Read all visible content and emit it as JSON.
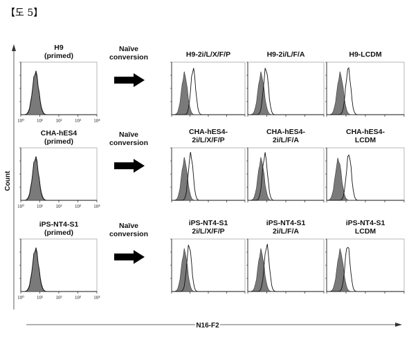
{
  "figure_label": "【도 5】",
  "chart_data": {
    "type": "histogram-overlay",
    "xlabel": "N16-F2",
    "ylabel": "Count",
    "x_scale": "log",
    "xlim": [
      1,
      10000
    ],
    "x_ticks": [
      "10⁰",
      "10¹",
      "10²",
      "10³",
      "10⁴"
    ],
    "conversion_label_1": "Naïve",
    "conversion_label_2": "conversion",
    "rows": [
      {
        "name": "H9",
        "subtitle": "(primed)",
        "control": {
          "title": "H9",
          "title2": "(primed)",
          "shaded_peak": 6,
          "open_peak": 6
        },
        "panels": [
          {
            "title": "H9-2i/L/X/F/P",
            "title2": "",
            "shaded_peak": 5,
            "open_peak": 15
          },
          {
            "title": "H9-2i/L/F/A",
            "title2": "",
            "shaded_peak": 5,
            "open_peak": 9
          },
          {
            "title": "H9-LCDM",
            "title2": "",
            "shaded_peak": 5,
            "open_peak": 13
          }
        ]
      },
      {
        "name": "CHA-hES4",
        "subtitle": "(primed)",
        "control": {
          "title": "CHA-hES4",
          "title2": "(primed)",
          "shaded_peak": 6,
          "open_peak": 6
        },
        "panels": [
          {
            "title": "CHA-hES4-",
            "title2": "2i/L/X/F/P",
            "shaded_peak": 5,
            "open_peak": 11
          },
          {
            "title": "CHA-hES4-",
            "title2": "2i/L/F/A",
            "shaded_peak": 5,
            "open_peak": 8
          },
          {
            "title": "CHA-hES4-",
            "title2": "LCDM",
            "shaded_peak": 4,
            "open_peak": 14
          }
        ]
      },
      {
        "name": "iPS-NT4-S1",
        "subtitle": "(primed)",
        "control": {
          "title": "iPS-NT4-S1",
          "title2": "(primed)",
          "shaded_peak": 6,
          "open_peak": 6
        },
        "panels": [
          {
            "title": "iPS-NT4-S1",
            "title2": "2i/L/X/F/P",
            "shaded_peak": 5,
            "open_peak": 9
          },
          {
            "title": "iPS-NT4-S1",
            "title2": "2i/L/F/A",
            "shaded_peak": 5,
            "open_peak": 10
          },
          {
            "title": "iPS-NT4-S1",
            "title2": "LCDM",
            "shaded_peak": 5,
            "open_peak": 12
          }
        ]
      }
    ]
  }
}
